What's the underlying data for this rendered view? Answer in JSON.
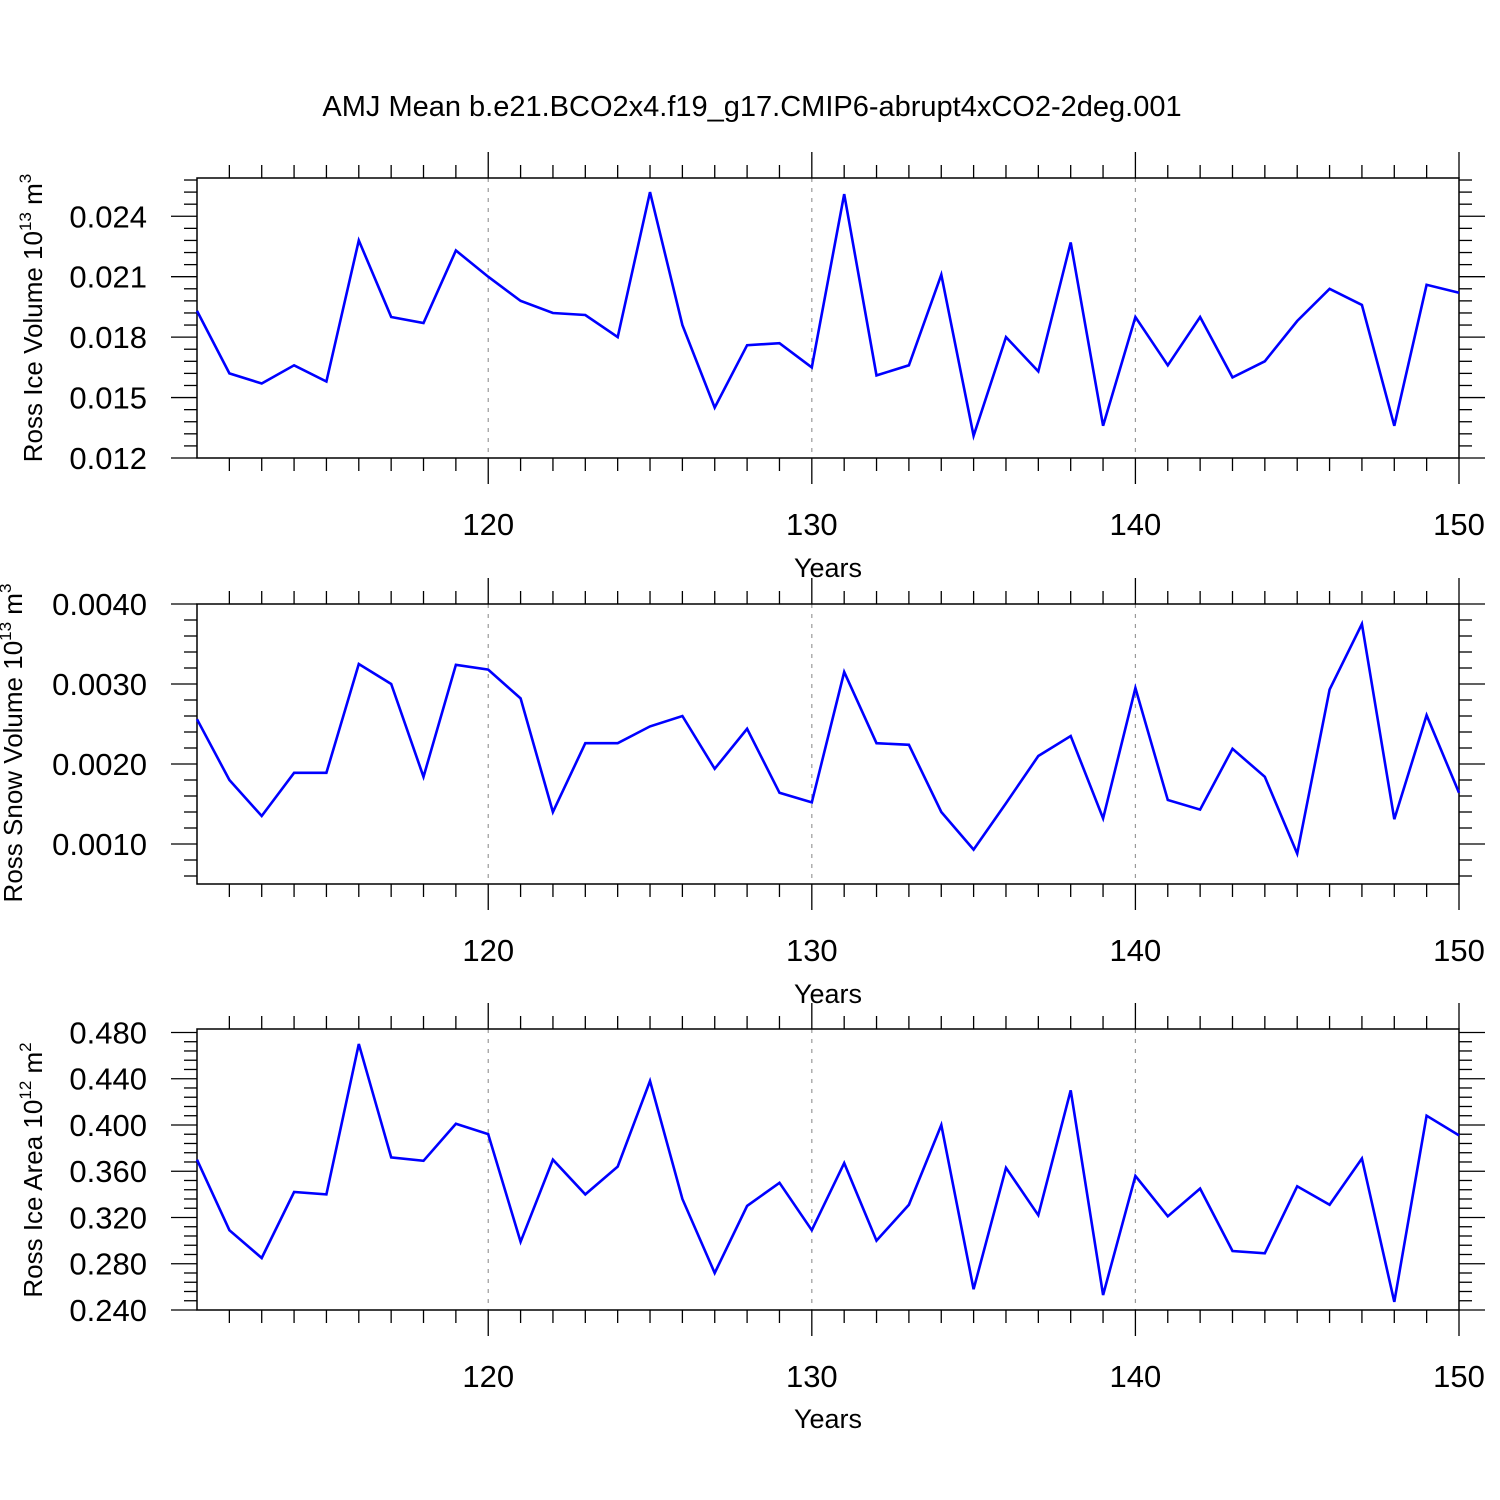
{
  "title": "AMJ Mean b.e21.BCO2x4.f19_g17.CMIP6-abrupt4xCO2-2deg.001",
  "colors": {
    "line": "#0000ff",
    "axis": "#000000",
    "grid": "#999999"
  },
  "chart_data": [
    {
      "type": "line",
      "xlabel": "Years",
      "ylabel": {
        "text": "Ross Ice Volume 10",
        "exp": "13",
        "unit": " m",
        "unit_exp": "3"
      },
      "xlim": [
        111,
        150
      ],
      "ylim": [
        0.012,
        0.0259
      ],
      "xticks": [
        120,
        130,
        140,
        150
      ],
      "xtick_labels": [
        "120",
        "130",
        "140",
        "150"
      ],
      "yticks": [
        0.012,
        0.015,
        0.018,
        0.021,
        0.024
      ],
      "ytick_labels": [
        "0.012",
        "0.015",
        "0.018",
        "0.021",
        "0.024"
      ],
      "grid": "vertical dashed at major x ticks",
      "x": [
        111,
        112,
        113,
        114,
        115,
        116,
        117,
        118,
        119,
        120,
        121,
        122,
        123,
        124,
        125,
        126,
        127,
        128,
        129,
        130,
        131,
        132,
        133,
        134,
        135,
        136,
        137,
        138,
        139,
        140,
        141,
        142,
        143,
        144,
        145,
        146,
        147,
        148,
        149,
        150
      ],
      "values": [
        0.0193,
        0.0162,
        0.0157,
        0.0166,
        0.0158,
        0.0228,
        0.019,
        0.0187,
        0.0223,
        0.021,
        0.0198,
        0.0192,
        0.0191,
        0.018,
        0.0252,
        0.0186,
        0.0145,
        0.0176,
        0.0177,
        0.0165,
        0.0251,
        0.0161,
        0.0166,
        0.0211,
        0.0131,
        0.018,
        0.0163,
        0.0227,
        0.0136,
        0.019,
        0.0166,
        0.019,
        0.016,
        0.0168,
        0.0188,
        0.0204,
        0.0196,
        0.0136,
        0.0206,
        0.0202
      ]
    },
    {
      "type": "line",
      "xlabel": "Years",
      "ylabel": {
        "text": "Ross Snow Volume 10",
        "exp": "13",
        "unit": " m",
        "unit_exp": "3"
      },
      "xlim": [
        111,
        150
      ],
      "ylim": [
        0.0005,
        0.004
      ],
      "xticks": [
        120,
        130,
        140,
        150
      ],
      "xtick_labels": [
        "120",
        "130",
        "140",
        "150"
      ],
      "yticks": [
        0.001,
        0.002,
        0.003,
        0.004
      ],
      "ytick_labels": [
        "0.0010",
        "0.0020",
        "0.0030",
        "0.0040"
      ],
      "grid": "vertical dashed at major x ticks",
      "x": [
        111,
        112,
        113,
        114,
        115,
        116,
        117,
        118,
        119,
        120,
        121,
        122,
        123,
        124,
        125,
        126,
        127,
        128,
        129,
        130,
        131,
        132,
        133,
        134,
        135,
        136,
        137,
        138,
        139,
        140,
        141,
        142,
        143,
        144,
        145,
        146,
        147,
        148,
        149,
        150
      ],
      "values": [
        0.00256,
        0.0018,
        0.00135,
        0.00189,
        0.00189,
        0.00325,
        0.003,
        0.00184,
        0.00324,
        0.00318,
        0.00282,
        0.0014,
        0.00226,
        0.00226,
        0.00247,
        0.0026,
        0.00194,
        0.00244,
        0.00164,
        0.00152,
        0.00315,
        0.00226,
        0.00224,
        0.0014,
        0.00093,
        0.00151,
        0.0021,
        0.00235,
        0.00132,
        0.00295,
        0.00155,
        0.00143,
        0.00219,
        0.00184,
        0.00088,
        0.00293,
        0.00375,
        0.00131,
        0.00261,
        0.00164
      ]
    },
    {
      "type": "line",
      "xlabel": "Years",
      "ylabel": {
        "text": "Ross Ice Area 10",
        "exp": "12",
        "unit": " m",
        "unit_exp": "2"
      },
      "xlim": [
        111,
        150
      ],
      "ylim": [
        0.24,
        0.483
      ],
      "xticks": [
        120,
        130,
        140,
        150
      ],
      "xtick_labels": [
        "120",
        "130",
        "140",
        "150"
      ],
      "yticks": [
        0.24,
        0.28,
        0.32,
        0.36,
        0.4,
        0.44,
        0.48
      ],
      "ytick_labels": [
        "0.240",
        "0.280",
        "0.320",
        "0.360",
        "0.400",
        "0.440",
        "0.480"
      ],
      "grid": "vertical dashed at major x ticks",
      "x": [
        111,
        112,
        113,
        114,
        115,
        116,
        117,
        118,
        119,
        120,
        121,
        122,
        123,
        124,
        125,
        126,
        127,
        128,
        129,
        130,
        131,
        132,
        133,
        134,
        135,
        136,
        137,
        138,
        139,
        140,
        141,
        142,
        143,
        144,
        145,
        146,
        147,
        148,
        149,
        150
      ],
      "values": [
        0.37,
        0.309,
        0.285,
        0.342,
        0.34,
        0.47,
        0.372,
        0.369,
        0.401,
        0.392,
        0.299,
        0.37,
        0.34,
        0.364,
        0.438,
        0.336,
        0.272,
        0.33,
        0.35,
        0.309,
        0.367,
        0.3,
        0.331,
        0.4,
        0.258,
        0.363,
        0.322,
        0.43,
        0.253,
        0.356,
        0.321,
        0.345,
        0.291,
        0.289,
        0.347,
        0.331,
        0.371,
        0.247,
        0.408,
        0.391
      ]
    }
  ]
}
